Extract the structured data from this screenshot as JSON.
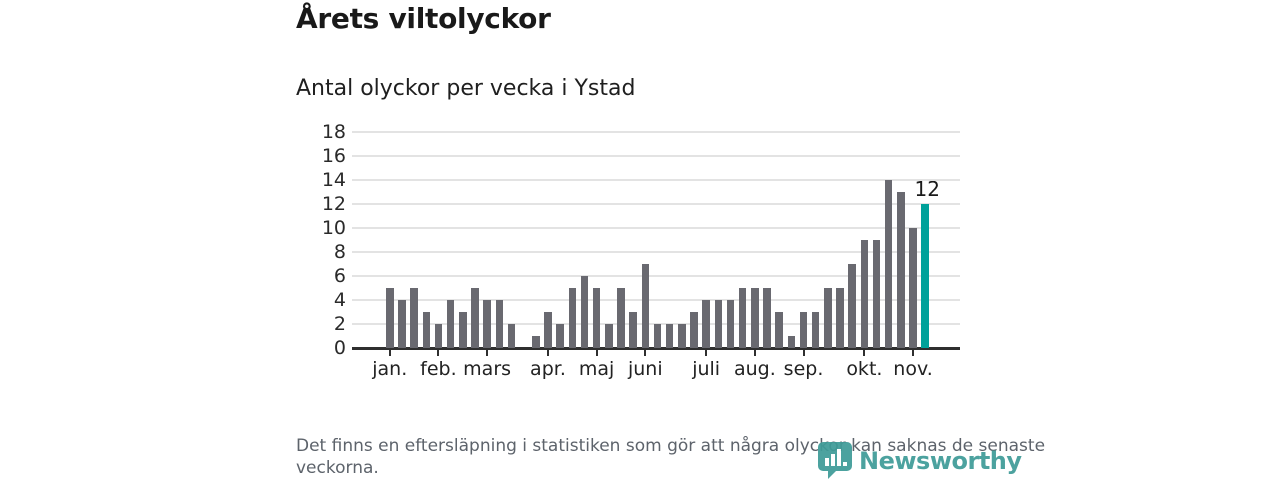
{
  "header": {
    "title": "Årets viltolyckor",
    "subtitle": "Antal olyckor per vecka i Ystad"
  },
  "chart_data": {
    "type": "bar",
    "title": "Årets viltolyckor",
    "subtitle": "Antal olyckor per vecka i Ystad",
    "x_unit": "vecka",
    "values": [
      5,
      4,
      5,
      3,
      2,
      4,
      3,
      5,
      4,
      4,
      2,
      0,
      1,
      3,
      2,
      5,
      6,
      5,
      2,
      5,
      3,
      7,
      2,
      2,
      2,
      3,
      4,
      4,
      4,
      5,
      5,
      5,
      3,
      1,
      3,
      3,
      5,
      5,
      7,
      9,
      9,
      14,
      13,
      10,
      12
    ],
    "month_ticks": [
      {
        "label": "jan.",
        "bar_index": 0
      },
      {
        "label": "feb.",
        "bar_index": 4
      },
      {
        "label": "mars",
        "bar_index": 8
      },
      {
        "label": "apr.",
        "bar_index": 13
      },
      {
        "label": "maj",
        "bar_index": 17
      },
      {
        "label": "juni",
        "bar_index": 21
      },
      {
        "label": "juli",
        "bar_index": 26
      },
      {
        "label": "aug.",
        "bar_index": 30
      },
      {
        "label": "sep.",
        "bar_index": 34
      },
      {
        "label": "okt.",
        "bar_index": 39
      },
      {
        "label": "nov.",
        "bar_index": 43
      }
    ],
    "ylim": [
      0,
      18
    ],
    "yticks": [
      0,
      2,
      4,
      6,
      8,
      10,
      12,
      14,
      16,
      18
    ],
    "grid": "horizontal",
    "legend": "none",
    "bar_color": "#696970",
    "highlight_color": "#00a19a",
    "highlight_index": 44,
    "annotation": {
      "label": "12",
      "bar_index": 44
    }
  },
  "footer": {
    "note": "Det finns en eftersläpning i statistiken som gör att några olyckor kan saknas de senaste veckorna."
  },
  "logo": {
    "text": "Newsworthy",
    "color": "#3f9b98"
  }
}
